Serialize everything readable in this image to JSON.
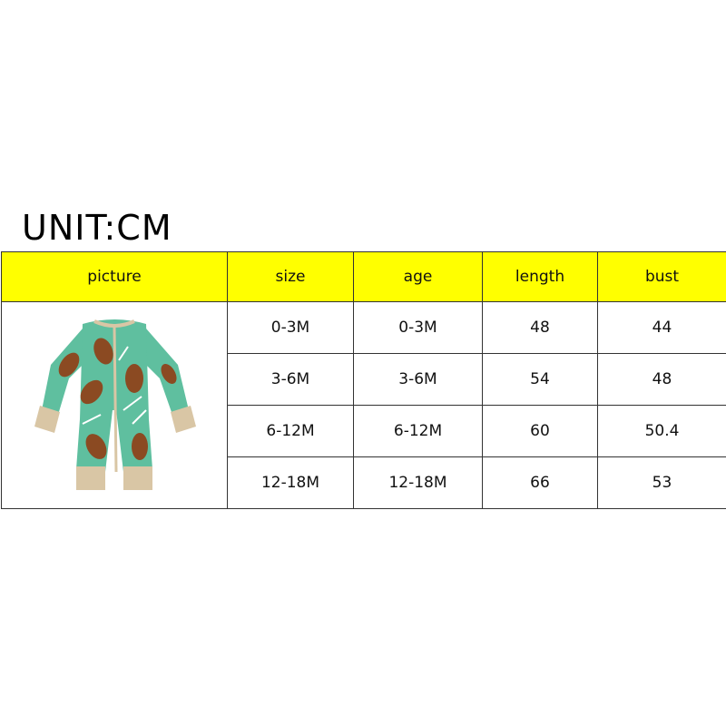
{
  "unit_label": "UNIT:CM",
  "headers": [
    "picture",
    "size",
    "age",
    "length",
    "bust"
  ],
  "rows": [
    {
      "size": "0-3M",
      "age": "0-3M",
      "length": "48",
      "bust": "44"
    },
    {
      "size": "3-6M",
      "age": "3-6M",
      "length": "54",
      "bust": "48"
    },
    {
      "size": "6-12M",
      "age": "6-12M",
      "length": "60",
      "bust": "50.4"
    },
    {
      "size": "12-18M",
      "age": "12-18M",
      "length": "66",
      "bust": "53"
    }
  ],
  "colors": {
    "header_bg": "#ffff00",
    "romper_green": "#5fbf9f",
    "football_brown": "#8b4a22",
    "cuff": "#d9c6a5"
  }
}
